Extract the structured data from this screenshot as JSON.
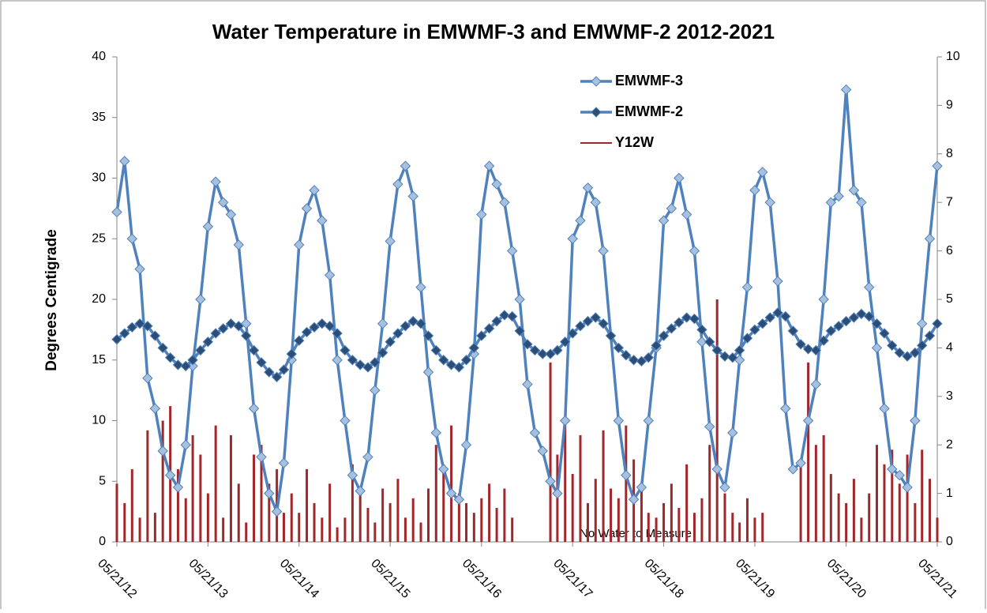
{
  "chart_data": {
    "type": "line",
    "title": "Water Temperature in EMWMF-3 and EMWMF-2 2012-2021",
    "y_label": "Degrees Centigrade",
    "annotation": "No Water to Measure",
    "legend": "upper right",
    "x": [
      "2012-05-21",
      "2012-06-21",
      "2012-07-21",
      "2012-08-21",
      "2012-09-21",
      "2012-10-21",
      "2012-11-21",
      "2012-12-21",
      "2013-01-21",
      "2013-02-21",
      "2013-03-21",
      "2013-04-21",
      "2013-05-21",
      "2013-06-21",
      "2013-07-21",
      "2013-08-21",
      "2013-09-21",
      "2013-10-21",
      "2013-11-21",
      "2013-12-21",
      "2014-01-21",
      "2014-02-21",
      "2014-03-21",
      "2014-04-21",
      "2014-05-21",
      "2014-06-21",
      "2014-07-21",
      "2014-08-21",
      "2014-09-21",
      "2014-10-21",
      "2014-11-21",
      "2014-12-21",
      "2015-01-21",
      "2015-02-21",
      "2015-03-21",
      "2015-04-21",
      "2015-05-21",
      "2015-06-21",
      "2015-07-21",
      "2015-08-21",
      "2015-09-21",
      "2015-10-21",
      "2015-11-21",
      "2015-12-21",
      "2016-01-21",
      "2016-02-21",
      "2016-03-21",
      "2016-04-21",
      "2016-05-21",
      "2016-06-21",
      "2016-07-21",
      "2016-08-21",
      "2016-09-21",
      "2016-10-21",
      "2016-11-21",
      "2016-12-21",
      "2017-01-21",
      "2017-02-21",
      "2017-03-21",
      "2017-04-21",
      "2017-05-21",
      "2017-06-21",
      "2017-07-21",
      "2017-08-21",
      "2017-09-21",
      "2017-10-21",
      "2017-11-21",
      "2017-12-21",
      "2018-01-21",
      "2018-02-21",
      "2018-03-21",
      "2018-04-21",
      "2018-05-21",
      "2018-06-21",
      "2018-07-21",
      "2018-08-21",
      "2018-09-21",
      "2018-10-21",
      "2018-11-21",
      "2018-12-21",
      "2019-01-21",
      "2019-02-21",
      "2019-03-21",
      "2019-04-21",
      "2019-05-21",
      "2019-06-21",
      "2019-07-21",
      "2019-08-21",
      "2019-09-21",
      "2019-10-21",
      "2019-11-21",
      "2019-12-21",
      "2020-01-21",
      "2020-02-21",
      "2020-03-21",
      "2020-04-21",
      "2020-05-21",
      "2020-06-21",
      "2020-07-21",
      "2020-08-21",
      "2020-09-21",
      "2020-10-21",
      "2020-11-21",
      "2020-12-21",
      "2021-01-21",
      "2021-02-21",
      "2021-03-21",
      "2021-04-21",
      "2021-05-21"
    ],
    "xlim": [
      "2012-05-21",
      "2021-05-21"
    ],
    "xticks": [
      {
        "value": "2012-05-21",
        "label": "05/21/12"
      },
      {
        "value": "2013-05-21",
        "label": "05/21/13"
      },
      {
        "value": "2014-05-21",
        "label": "05/21/14"
      },
      {
        "value": "2015-05-21",
        "label": "05/21/15"
      },
      {
        "value": "2016-05-21",
        "label": "05/21/16"
      },
      {
        "value": "2017-05-21",
        "label": "05/21/17"
      },
      {
        "value": "2018-05-21",
        "label": "05/21/18"
      },
      {
        "value": "2019-05-21",
        "label": "05/21/19"
      },
      {
        "value": "2020-05-21",
        "label": "05/21/20"
      },
      {
        "value": "2021-05-21",
        "label": "05/21/21"
      }
    ],
    "ylim": [
      0,
      40
    ],
    "yticks": [
      0,
      5,
      10,
      15,
      20,
      25,
      30,
      35,
      40
    ],
    "y2lim": [
      0,
      10
    ],
    "y2ticks": [
      0,
      1,
      2,
      3,
      4,
      5,
      6,
      7,
      8,
      9,
      10
    ],
    "series": [
      {
        "name": "EMWMF-3",
        "color": "#4f81bd",
        "marker_color": "#a7c0de",
        "values": [
          27.2,
          31.4,
          25.0,
          22.5,
          13.5,
          11.0,
          7.5,
          5.5,
          4.5,
          8.0,
          14.5,
          20.0,
          26.0,
          29.7,
          28.0,
          27.0,
          24.5,
          18.0,
          11.0,
          7.0,
          4.0,
          2.5,
          6.5,
          15.0,
          24.5,
          27.5,
          29.0,
          26.5,
          22.0,
          15.0,
          10.0,
          5.5,
          4.2,
          7.0,
          12.5,
          18.0,
          24.8,
          29.5,
          31.0,
          28.5,
          21.0,
          14.0,
          9.0,
          6.0,
          4.0,
          3.5,
          8.0,
          15.5,
          27.0,
          31.0,
          29.5,
          28.0,
          24.0,
          20.0,
          13.0,
          9.0,
          7.5,
          5.0,
          4.0,
          10.0,
          25.0,
          26.5,
          29.2,
          28.0,
          24.0,
          17.0,
          10.0,
          5.5,
          3.5,
          4.5,
          10.0,
          16.0,
          26.5,
          27.5,
          30.0,
          27.0,
          24.0,
          16.5,
          9.5,
          6.0,
          4.5,
          9.0,
          15.0,
          21.0,
          29.0,
          30.5,
          28.0,
          21.5,
          11.0,
          6.0,
          6.5,
          10.0,
          13.0,
          20.0,
          28.0,
          28.5,
          37.3,
          29.0,
          28.0,
          21.0,
          16.0,
          11.0,
          6.0,
          5.5,
          4.5,
          10.0,
          18.0,
          25.0,
          31.0
        ]
      },
      {
        "name": "EMWMF-2",
        "color": "#4f81bd",
        "marker_color": "#2c4d75",
        "values": [
          16.7,
          17.2,
          17.7,
          18.0,
          17.8,
          17.0,
          16.0,
          15.2,
          14.6,
          14.5,
          15.0,
          15.8,
          16.5,
          17.2,
          17.6,
          18.0,
          17.8,
          17.0,
          15.8,
          14.8,
          14.0,
          13.6,
          14.2,
          15.5,
          16.6,
          17.3,
          17.7,
          18.0,
          17.8,
          17.2,
          15.8,
          15.0,
          14.6,
          14.4,
          14.8,
          15.6,
          16.5,
          17.2,
          17.8,
          18.2,
          18.0,
          17.0,
          15.8,
          15.0,
          14.6,
          14.4,
          15.0,
          16.0,
          17.0,
          17.6,
          18.2,
          18.7,
          18.6,
          17.4,
          16.3,
          15.8,
          15.5,
          15.5,
          15.8,
          16.5,
          17.2,
          17.8,
          18.2,
          18.5,
          18.0,
          17.0,
          16.0,
          15.4,
          15.0,
          14.9,
          15.2,
          16.2,
          17.0,
          17.6,
          18.1,
          18.5,
          18.4,
          17.5,
          16.5,
          15.8,
          15.3,
          15.2,
          15.8,
          16.8,
          17.5,
          18.0,
          18.5,
          18.9,
          18.6,
          17.4,
          16.3,
          15.9,
          15.8,
          16.6,
          17.4,
          17.8,
          18.2,
          18.5,
          18.8,
          18.6,
          18.0,
          17.2,
          16.2,
          15.6,
          15.3,
          15.6,
          16.2,
          17.0,
          18.0
        ]
      },
      {
        "name": "Y12W",
        "type": "bar",
        "axis": "y2",
        "color": "#a0282c",
        "values": [
          1.2,
          0.8,
          1.5,
          0.5,
          2.3,
          0.6,
          2.5,
          2.8,
          1.5,
          0.9,
          2.2,
          1.8,
          1.0,
          2.4,
          0.5,
          2.2,
          1.2,
          0.4,
          1.8,
          2.0,
          1.2,
          1.5,
          0.6,
          1.0,
          0.6,
          1.5,
          0.8,
          0.5,
          1.2,
          0.3,
          0.5,
          1.6,
          1.0,
          0.7,
          0.4,
          1.1,
          0.8,
          1.3,
          0.5,
          0.9,
          0.4,
          1.1,
          2.0,
          1.6,
          2.4,
          1.0,
          0.8,
          0.6,
          0.9,
          1.2,
          0.7,
          1.1,
          0.5,
          0,
          0,
          0,
          0,
          3.7,
          1.8,
          2.5,
          1.4,
          2.2,
          0.8,
          1.3,
          2.3,
          1.1,
          0.9,
          2.4,
          1.7,
          1.2,
          0.6,
          0.5,
          0.8,
          1.2,
          0.7,
          1.6,
          0.6,
          0.9,
          2.0,
          5.0,
          1.0,
          0.6,
          0.4,
          0.9,
          0.5,
          0.6,
          0,
          0,
          0,
          0,
          1.7,
          3.7,
          2.0,
          2.2,
          1.4,
          1.0,
          0.8,
          1.3,
          0.5,
          1.0,
          2.0,
          1.6,
          1.9,
          1.2,
          1.8,
          0.8,
          1.9,
          1.3,
          0.5
        ]
      }
    ]
  }
}
